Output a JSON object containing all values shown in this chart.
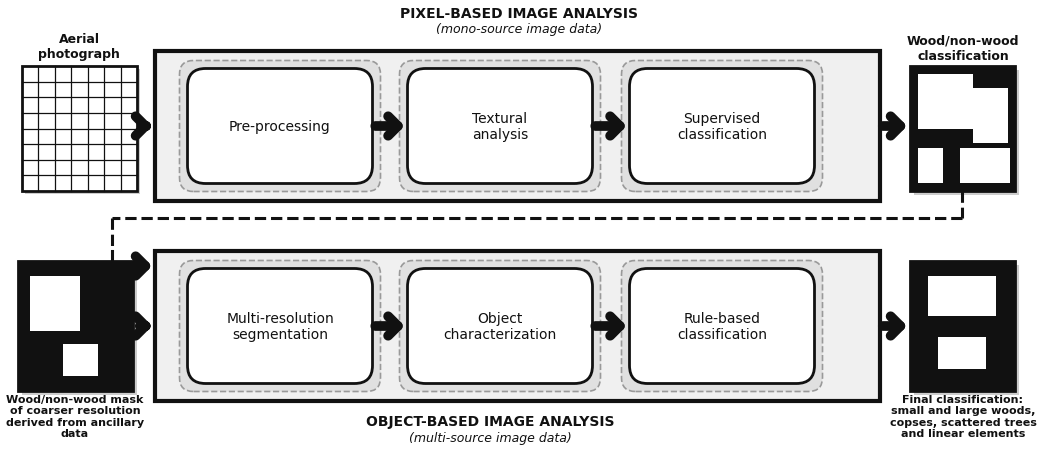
{
  "fig_width": 10.38,
  "fig_height": 4.77,
  "bg_color": "#ffffff",
  "title_pixel": "PIXEL-BASED IMAGE ANALYSIS",
  "subtitle_pixel": "(mono-source image data)",
  "title_object": "OBJECT-BASED IMAGE ANALYSIS",
  "subtitle_object": "(multi-source image data)",
  "label_aerial": "Aerial\nphotograph",
  "label_wood_nonwood": "Wood/non-wood\nclassification",
  "label_mask": "Wood/non-wood mask\nof coarser resolution\nderived from ancillary\ndata",
  "label_final": "Final classification:\nsmall and large woods,\ncopses, scattered trees\nand linear elements",
  "boxes_row1": [
    "Pre-processing",
    "Textural\nanalysis",
    "Supervised\nclassification"
  ],
  "boxes_row2": [
    "Multi-resolution\nsegmentation",
    "Object\ncharacterization",
    "Rule-based\nclassification"
  ],
  "dark_color": "#111111",
  "medium_gray": "#999999"
}
